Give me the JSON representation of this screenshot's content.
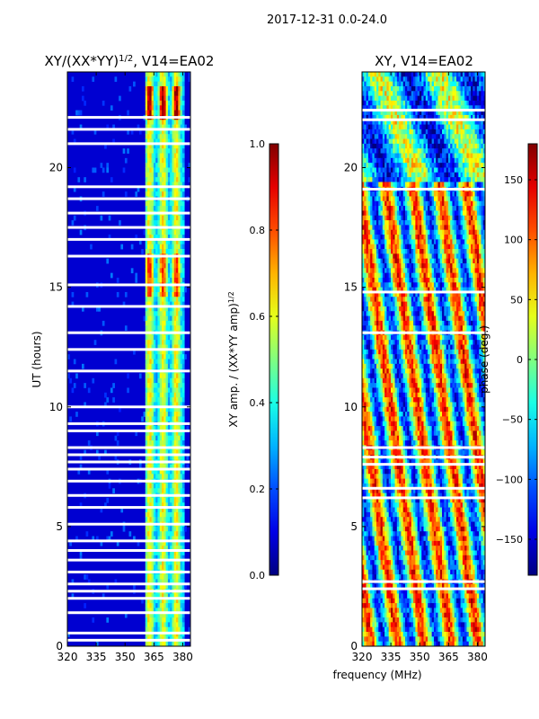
{
  "suptitle": "2017-12-31 0.0-24.0",
  "shared_xlabel": "frequency (MHz)",
  "chart_data": [
    {
      "type": "heatmap",
      "title_main": "XY/(XX*YY)",
      "title_sup": "1/2",
      "title_suffix": ", V14=EA02",
      "ylabel": "UT (hours)",
      "xlim": [
        320,
        384
      ],
      "ylim": [
        0,
        24
      ],
      "xticks": [
        320,
        335,
        350,
        365,
        380
      ],
      "yticks": [
        0,
        5,
        10,
        15,
        20
      ],
      "bright_band_freq_MHz": [
        361,
        381
      ],
      "blank_ut_hours": [
        0.25,
        0.55,
        1.4,
        2.0,
        2.3,
        2.6,
        3.1,
        3.6,
        4.0,
        4.4,
        5.1,
        5.8,
        6.3,
        6.9,
        7.4,
        7.7,
        8.0,
        8.3,
        9.0,
        9.3,
        10.0,
        11.5,
        12.4,
        13.1,
        14.2,
        15.1,
        16.3,
        17.0,
        17.5,
        18.1,
        18.7,
        19.2,
        21.0,
        21.6,
        22.1
      ],
      "colorbar": {
        "label_main": "XY amp. / (XX*YY amp)",
        "label_sup": "1/2",
        "range": [
          0.0,
          1.0
        ],
        "ticks": [
          "0.0",
          "0.2",
          "0.4",
          "0.6",
          "0.8",
          "1.0"
        ],
        "tick_values": [
          0.0,
          0.2,
          0.4,
          0.6,
          0.8,
          1.0
        ]
      }
    },
    {
      "type": "heatmap",
      "title": "XY, V14=EA02",
      "xlim": [
        320,
        384
      ],
      "ylim": [
        0,
        24
      ],
      "xticks": [
        320,
        335,
        350,
        365,
        380
      ],
      "yticks": [
        0,
        5,
        10,
        15,
        20
      ],
      "blank_ut_hours": [
        2.4,
        2.7,
        6.2,
        6.6,
        7.6,
        7.9,
        8.3,
        13.1,
        14.8,
        19.1,
        22.0,
        22.4
      ],
      "colorbar": {
        "label": "phase (deg.)",
        "range": [
          -180,
          180
        ],
        "ticks": [
          "150",
          "100",
          "50",
          "0",
          "−50",
          "−100",
          "−150"
        ],
        "tick_values": [
          150,
          100,
          50,
          0,
          -50,
          -100,
          -150
        ]
      }
    }
  ]
}
